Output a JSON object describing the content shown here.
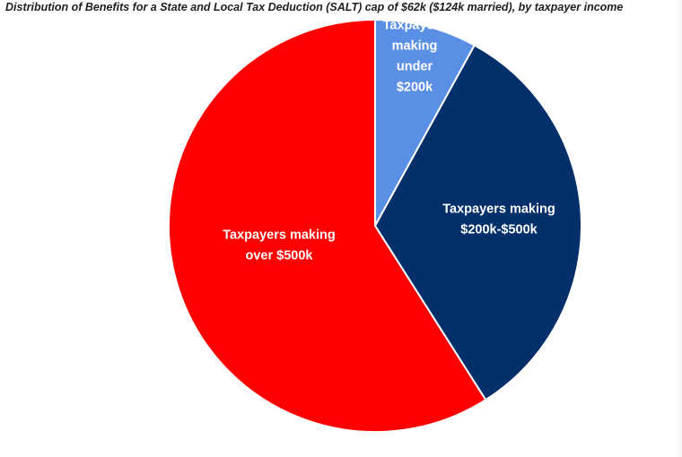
{
  "chart_data": {
    "type": "pie",
    "title": "Distribution of Benefits for a State and Local Tax Deduction (SALT) cap of $62k ($124k married), by taxpayer income",
    "categories": [
      "Taxpayers making under $200k",
      "Taxpayers making $200k-$500k",
      "Taxpayers making over $500k"
    ],
    "values": [
      8,
      33,
      59
    ],
    "unit": "percent of benefits",
    "colors": [
      "#5a8fe6",
      "#03306b",
      "#ff0000"
    ],
    "labels": [
      [
        "Taxpayers",
        "making",
        "under",
        "$200k"
      ],
      [
        "Taxpayers making",
        "$200k-$500k"
      ],
      [
        "Taxpayers making",
        "over $500k"
      ]
    ],
    "legend": "none",
    "start_angle": "12 o'clock, clockwise"
  }
}
